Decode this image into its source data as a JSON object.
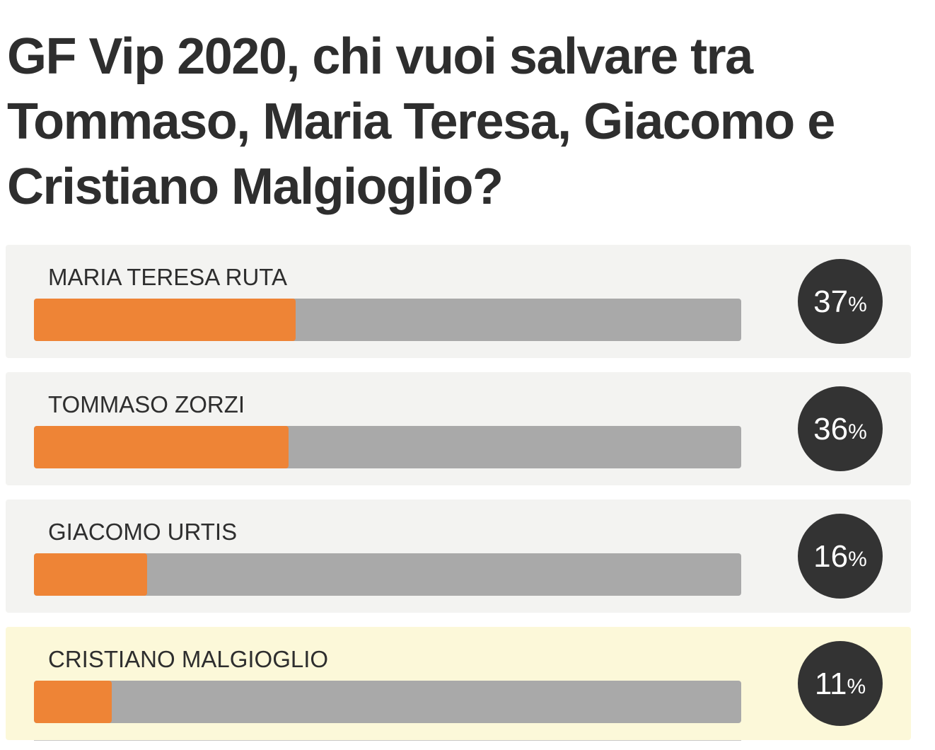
{
  "poll": {
    "title": "GF Vip 2020, chi vuoi salvare tra Tommaso, Maria Teresa, Giacomo e Cristiano Malgioglio?",
    "percent_sign": "%",
    "options": [
      {
        "label": "MARIA TERESA RUTA",
        "percent": 37,
        "percent_text": "37",
        "background": "#f3f3f1"
      },
      {
        "label": "TOMMASO ZORZI",
        "percent": 36,
        "percent_text": "36",
        "background": "#f3f3f1"
      },
      {
        "label": "GIACOMO URTIS",
        "percent": 16,
        "percent_text": "16",
        "background": "#f3f3f1"
      },
      {
        "label": "CRISTIANO MALGIOGLIO",
        "percent": 11,
        "percent_text": "11",
        "background": "#fcf8d9"
      }
    ]
  },
  "colors": {
    "bar_fill": "#ee8436",
    "bar_track": "#a9a9a9",
    "badge": "#333333",
    "title_text": "#2e2e2e",
    "selected_option_background": "#fcf8d9"
  }
}
